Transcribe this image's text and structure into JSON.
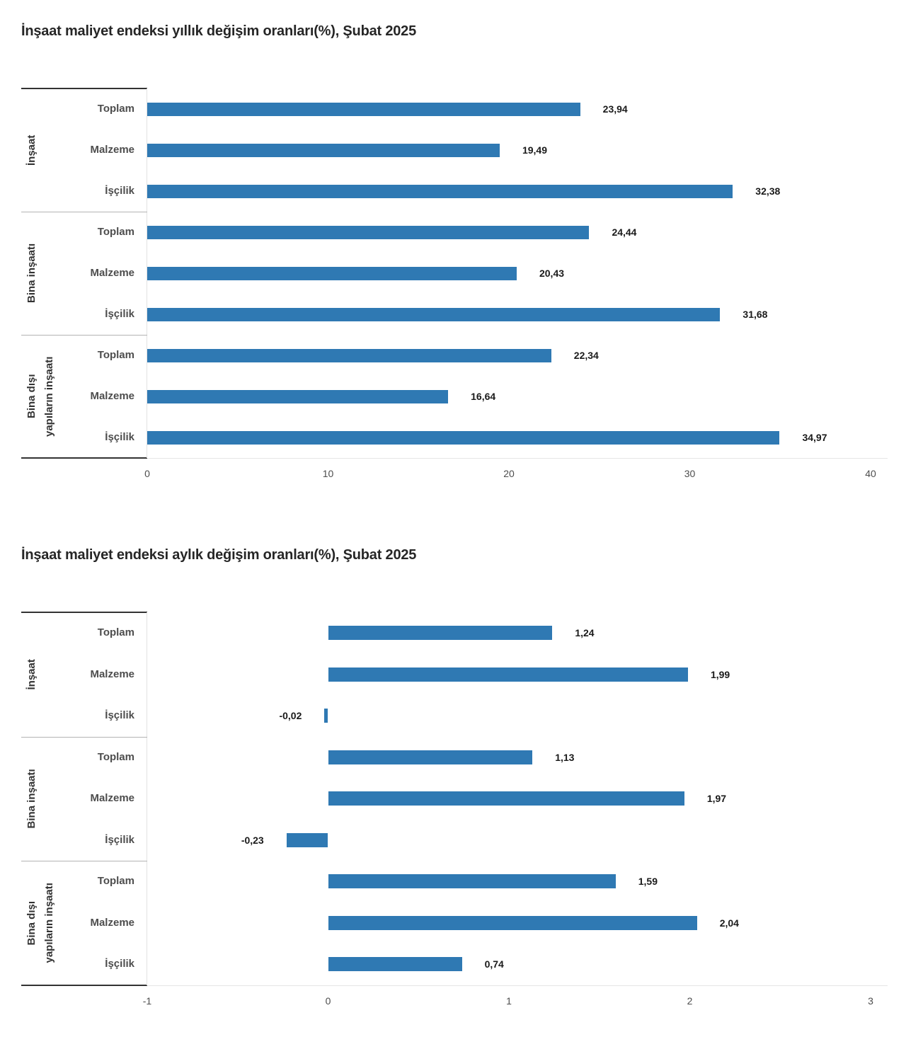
{
  "chart_data": [
    {
      "type": "bar",
      "orientation": "horizontal",
      "title": "İnşaat maliyet endeksi yıllık değişim oranları(%), Şubat 2025",
      "categories": [
        "Toplam",
        "Malzeme",
        "İşçilik"
      ],
      "group_label_lines": [
        [
          "İnşaat"
        ],
        [
          "Bina inşaatı"
        ],
        [
          "Bina dışı",
          "yapıların inşaatı"
        ]
      ],
      "series": [
        {
          "group": "İnşaat",
          "values": [
            23.94,
            19.49,
            32.38
          ],
          "labels": [
            "23,94",
            "19,49",
            "32,38"
          ]
        },
        {
          "group": "Bina inşaatı",
          "values": [
            24.44,
            20.43,
            31.68
          ],
          "labels": [
            "24,44",
            "20,43",
            "31,68"
          ]
        },
        {
          "group": "Bina dışı yapıların inşaatı",
          "values": [
            22.34,
            16.64,
            34.97
          ],
          "labels": [
            "22,34",
            "16,64",
            "34,97"
          ]
        }
      ],
      "xlim": [
        0,
        40
      ],
      "xticks": [
        {
          "value": 0,
          "label": "0"
        },
        {
          "value": 10,
          "label": "10"
        },
        {
          "value": 20,
          "label": "20"
        },
        {
          "value": 30,
          "label": "30"
        },
        {
          "value": 40,
          "label": "40"
        }
      ],
      "bar_color": "#2f79b3",
      "grid": false,
      "legend": "none"
    },
    {
      "type": "bar",
      "orientation": "horizontal",
      "title": "İnşaat maliyet endeksi aylık değişim oranları(%), Şubat 2025",
      "categories": [
        "Toplam",
        "Malzeme",
        "İşçilik"
      ],
      "group_label_lines": [
        [
          "İnşaat"
        ],
        [
          "Bina inşaatı"
        ],
        [
          "Bina dışı",
          "yapıların inşaatı"
        ]
      ],
      "series": [
        {
          "group": "İnşaat",
          "values": [
            1.24,
            1.99,
            -0.02
          ],
          "labels": [
            "1,24",
            "1,99",
            "-0,02"
          ]
        },
        {
          "group": "Bina inşaatı",
          "values": [
            1.13,
            1.97,
            -0.23
          ],
          "labels": [
            "1,13",
            "1,97",
            "-0,23"
          ]
        },
        {
          "group": "Bina dışı yapıların inşaatı",
          "values": [
            1.59,
            2.04,
            0.74
          ],
          "labels": [
            "1,59",
            "2,04",
            "0,74"
          ]
        }
      ],
      "xlim": [
        -1,
        3
      ],
      "xticks": [
        {
          "value": -1,
          "label": "-1"
        },
        {
          "value": 0,
          "label": "0"
        },
        {
          "value": 1,
          "label": "1"
        },
        {
          "value": 2,
          "label": "2"
        },
        {
          "value": 3,
          "label": "3"
        }
      ],
      "bar_color": "#2f79b3",
      "grid": false,
      "legend": "none"
    }
  ]
}
